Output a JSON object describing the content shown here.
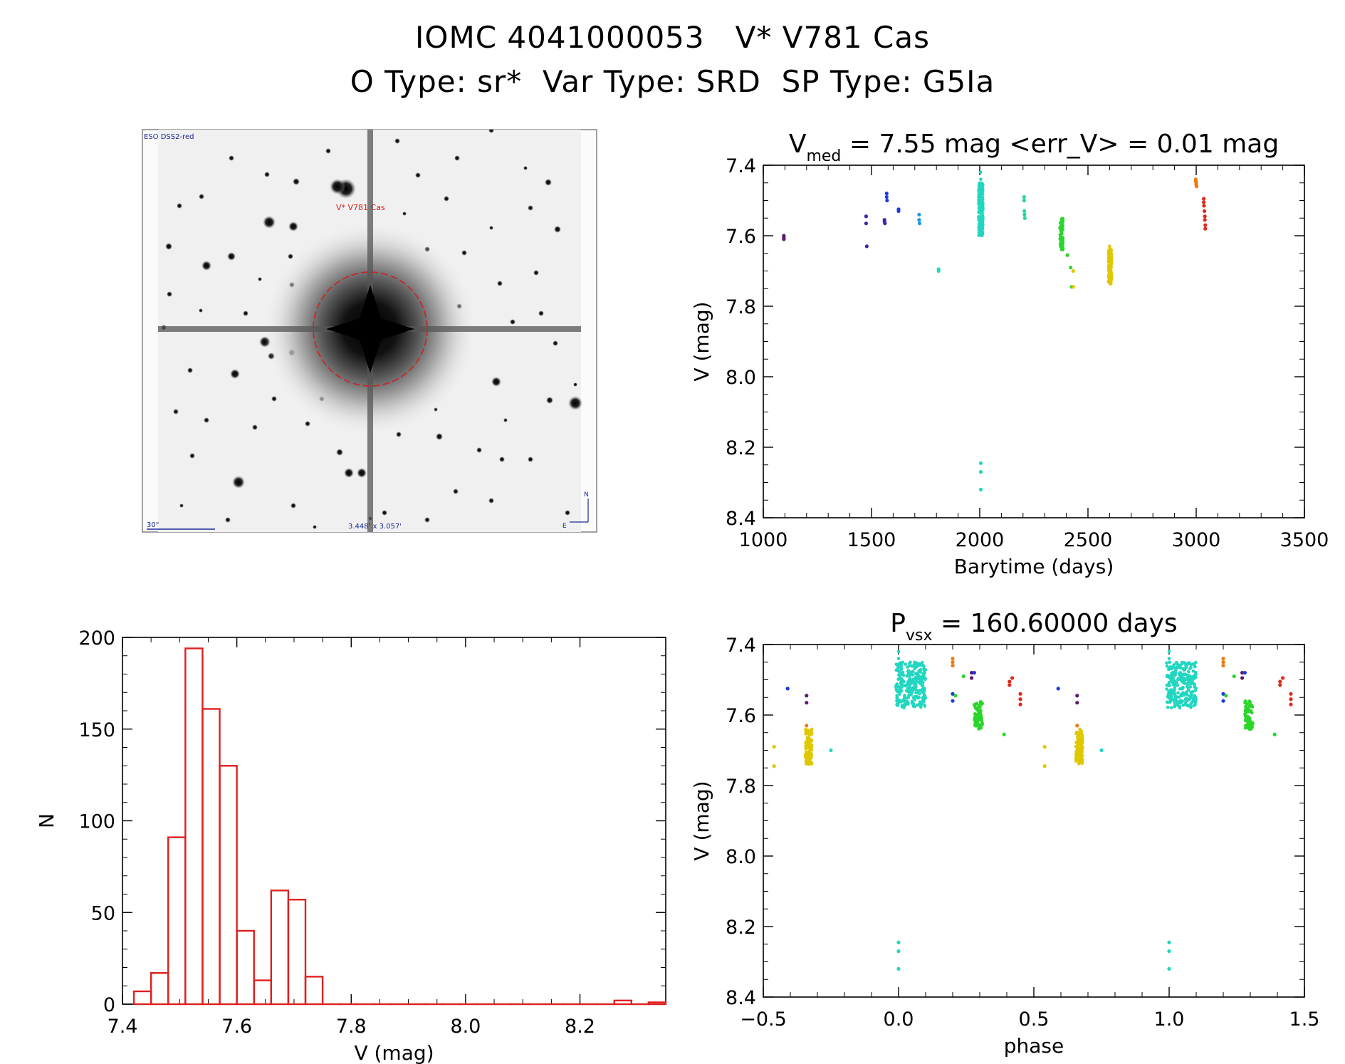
{
  "header": {
    "line1": "IOMC 4041000053   V* V781 Cas",
    "line2": "O Type: sr*  Var Type: SRD  SP Type: G5Ia"
  },
  "image_panel": {
    "label_top_left": "ESO DSS2-red",
    "label_target": "V* V781 Cas",
    "label_scale": "30\"",
    "label_fov": "3.448' x 3.057'",
    "label_north": "N",
    "label_east": "E",
    "circle_color": "#cc2222",
    "label_color": "#1a2a9a"
  },
  "chart_data": [
    {
      "id": "lightcurve",
      "type": "scatter",
      "title_main": "V",
      "title_sub": "med",
      "title_rest": " = 7.55 mag <err_V> = 0.01 mag",
      "xlabel": "Barytime (days)",
      "ylabel": "V (mag)",
      "xlim": [
        1000,
        3500
      ],
      "ylim": [
        8.4,
        7.4
      ],
      "xticks": [
        "1000",
        "1500",
        "2000",
        "2500",
        "3000",
        "3500"
      ],
      "yticks": [
        "7.4",
        "7.6",
        "7.8",
        "8.0",
        "8.2",
        "8.4"
      ],
      "series": [
        {
          "color": "#5a1a6e",
          "x": [
            1095,
            1095,
            1095
          ],
          "y": [
            7.6,
            7.605,
            7.61
          ]
        },
        {
          "color": "#3a2aa0",
          "x": [
            1475,
            1475,
            1478,
            1560,
            1560,
            1562
          ],
          "y": [
            7.545,
            7.565,
            7.63,
            7.555,
            7.56,
            7.565
          ]
        },
        {
          "color": "#1a3ae0",
          "x": [
            1570,
            1570,
            1572,
            1625,
            1625
          ],
          "y": [
            7.48,
            7.49,
            7.5,
            7.525,
            7.53
          ]
        },
        {
          "color": "#1a9ae6",
          "x": [
            1720,
            1720,
            1722
          ],
          "y": [
            7.54,
            7.555,
            7.565
          ]
        },
        {
          "color": "#22d6c0",
          "x": [
            1810,
            1810,
            2005,
            2005,
            2005
          ],
          "y": [
            7.695,
            7.7,
            8.245,
            8.27,
            8.32
          ]
        },
        {
          "color": "#22d6a0",
          "x": [
            2205,
            2205,
            2206,
            2207,
            2208
          ],
          "y": [
            7.49,
            7.5,
            7.53,
            7.54,
            7.55
          ]
        },
        {
          "color": "#2ad62a",
          "x": [
            2405,
            2420,
            2425
          ],
          "y": [
            7.655,
            7.69,
            7.745
          ]
        },
        {
          "color": "#e0c800",
          "x": [
            2432,
            2432
          ],
          "y": [
            7.7,
            7.745
          ]
        },
        {
          "color": "#f07a10",
          "x": [
            2998,
            2998,
            3000,
            3000,
            3002
          ],
          "y": [
            7.44,
            7.445,
            7.45,
            7.455,
            7.46
          ]
        },
        {
          "color": "#e02a1a",
          "x": [
            3035,
            3035,
            3036,
            3038,
            3040,
            3040,
            3042,
            3042
          ],
          "y": [
            7.495,
            7.505,
            7.515,
            7.53,
            7.545,
            7.555,
            7.57,
            7.58
          ]
        }
      ],
      "clusters": [
        {
          "color": "#22d6c0",
          "x": [
            1995,
            2015
          ],
          "y": [
            7.45,
            7.6
          ],
          "n": 260,
          "extra_x": [
            2004,
            2005
          ],
          "extra_y": [
            7.42,
            7.44
          ]
        },
        {
          "color": "#2ad62a",
          "x": [
            2370,
            2385
          ],
          "y": [
            7.55,
            7.64
          ],
          "n": 70
        },
        {
          "color": "#e0c800",
          "x": [
            2595,
            2610
          ],
          "y": [
            7.64,
            7.74
          ],
          "n": 110,
          "extra_x": [
            2600,
            2601
          ],
          "extra_y": [
            7.63,
            7.635
          ]
        }
      ]
    },
    {
      "id": "phased",
      "type": "scatter",
      "title_main": "P",
      "title_sub": "vsx",
      "title_rest": " = 160.60000 days",
      "xlabel": "phase",
      "ylabel": "V (mag)",
      "period_days": 160.6,
      "xlim": [
        -0.5,
        1.5
      ],
      "ylim": [
        8.4,
        7.4
      ],
      "xticks": [
        "−0.5",
        "0.0",
        "0.5",
        "1.0",
        "1.5"
      ],
      "yticks": [
        "7.4",
        "7.6",
        "7.8",
        "8.0",
        "8.2",
        "8.4"
      ],
      "series": [
        {
          "color": "#22d6c0",
          "x": [
            0.0,
            0.0,
            0.0,
            1.0,
            1.0,
            1.0
          ],
          "y": [
            8.245,
            8.27,
            8.32,
            8.245,
            8.27,
            8.32
          ]
        },
        {
          "color": "#22d6c0",
          "x": [
            -0.25,
            0.75
          ],
          "y": [
            7.7,
            7.7
          ]
        },
        {
          "color": "#5a1a6e",
          "x": [
            -0.34,
            -0.34,
            0.66,
            0.66,
            0.27,
            0.27,
            1.27,
            1.27
          ],
          "y": [
            7.545,
            7.565,
            7.545,
            7.565,
            7.48,
            7.495,
            7.48,
            7.495
          ]
        },
        {
          "color": "#1a3ae0",
          "x": [
            -0.41,
            0.59,
            0.2,
            0.2,
            1.2,
            1.2,
            0.28,
            1.28
          ],
          "y": [
            7.525,
            7.525,
            7.54,
            7.56,
            7.54,
            7.56,
            7.48,
            7.48
          ]
        },
        {
          "color": "#f07a10",
          "x": [
            0.2,
            0.2,
            0.2,
            1.2,
            1.2,
            1.2,
            -0.34,
            0.66
          ],
          "y": [
            7.44,
            7.45,
            7.46,
            7.44,
            7.45,
            7.46,
            7.63,
            7.63
          ]
        },
        {
          "color": "#e02a1a",
          "x": [
            0.42,
            0.41,
            0.41,
            0.45,
            0.45,
            0.45,
            1.42,
            1.41,
            1.41,
            1.45,
            1.45,
            1.45
          ],
          "y": [
            7.495,
            7.505,
            7.515,
            7.54,
            7.555,
            7.57,
            7.495,
            7.505,
            7.515,
            7.54,
            7.555,
            7.57
          ]
        },
        {
          "color": "#2ad62a",
          "x": [
            0.24,
            1.24,
            0.21,
            1.21,
            0.39,
            1.39
          ],
          "y": [
            7.49,
            7.49,
            7.545,
            7.545,
            7.655,
            7.655
          ]
        },
        {
          "color": "#e0c800",
          "x": [
            -0.46,
            -0.46,
            0.54,
            0.54
          ],
          "y": [
            7.69,
            7.745,
            7.69,
            7.745
          ]
        }
      ],
      "clusters": [
        {
          "color": "#22d6c0",
          "x": [
            -0.01,
            0.1
          ],
          "y": [
            7.45,
            7.58
          ],
          "n": 260,
          "extra_x": [
            0.0,
            0.0
          ],
          "extra_y": [
            7.42,
            7.44
          ]
        },
        {
          "color": "#22d6c0",
          "x": [
            0.99,
            1.1
          ],
          "y": [
            7.45,
            7.58
          ],
          "n": 260,
          "extra_x": [
            1.0,
            1.0
          ],
          "extra_y": [
            7.42,
            7.44
          ]
        },
        {
          "color": "#2ad62a",
          "x": [
            0.28,
            0.31
          ],
          "y": [
            7.56,
            7.64
          ],
          "n": 70
        },
        {
          "color": "#2ad62a",
          "x": [
            1.28,
            1.31
          ],
          "y": [
            7.56,
            7.64
          ],
          "n": 70
        },
        {
          "color": "#e0c800",
          "x": [
            -0.345,
            -0.32
          ],
          "y": [
            7.64,
            7.74
          ],
          "n": 110
        },
        {
          "color": "#e0c800",
          "x": [
            0.655,
            0.68
          ],
          "y": [
            7.64,
            7.74
          ],
          "n": 110
        }
      ]
    },
    {
      "id": "histogram",
      "type": "bar",
      "xlabel": "V (mag)",
      "ylabel": "N",
      "xlim": [
        7.4,
        8.35
      ],
      "ylim": [
        0,
        200
      ],
      "xticks": [
        "7.4",
        "7.6",
        "7.8",
        "8.0",
        "8.2"
      ],
      "yticks": [
        "0",
        "50",
        "100",
        "150",
        "200"
      ],
      "bin_edges": [
        7.42,
        7.45,
        7.48,
        7.51,
        7.54,
        7.57,
        7.6,
        7.63,
        7.66,
        7.69,
        7.72,
        7.75,
        7.78,
        7.81,
        7.84,
        7.87,
        7.9,
        7.93,
        7.96,
        7.99,
        8.02,
        8.05,
        8.08,
        8.11,
        8.14,
        8.17,
        8.2,
        8.23,
        8.26,
        8.29,
        8.32,
        8.35
      ],
      "values": [
        7,
        17,
        91,
        194,
        161,
        130,
        40,
        13,
        62,
        57,
        15,
        0,
        0,
        0,
        0,
        0,
        0,
        0,
        0,
        0,
        0,
        0,
        0,
        0,
        0,
        0,
        0,
        0,
        2,
        0,
        1
      ],
      "color": "#e02020"
    }
  ]
}
